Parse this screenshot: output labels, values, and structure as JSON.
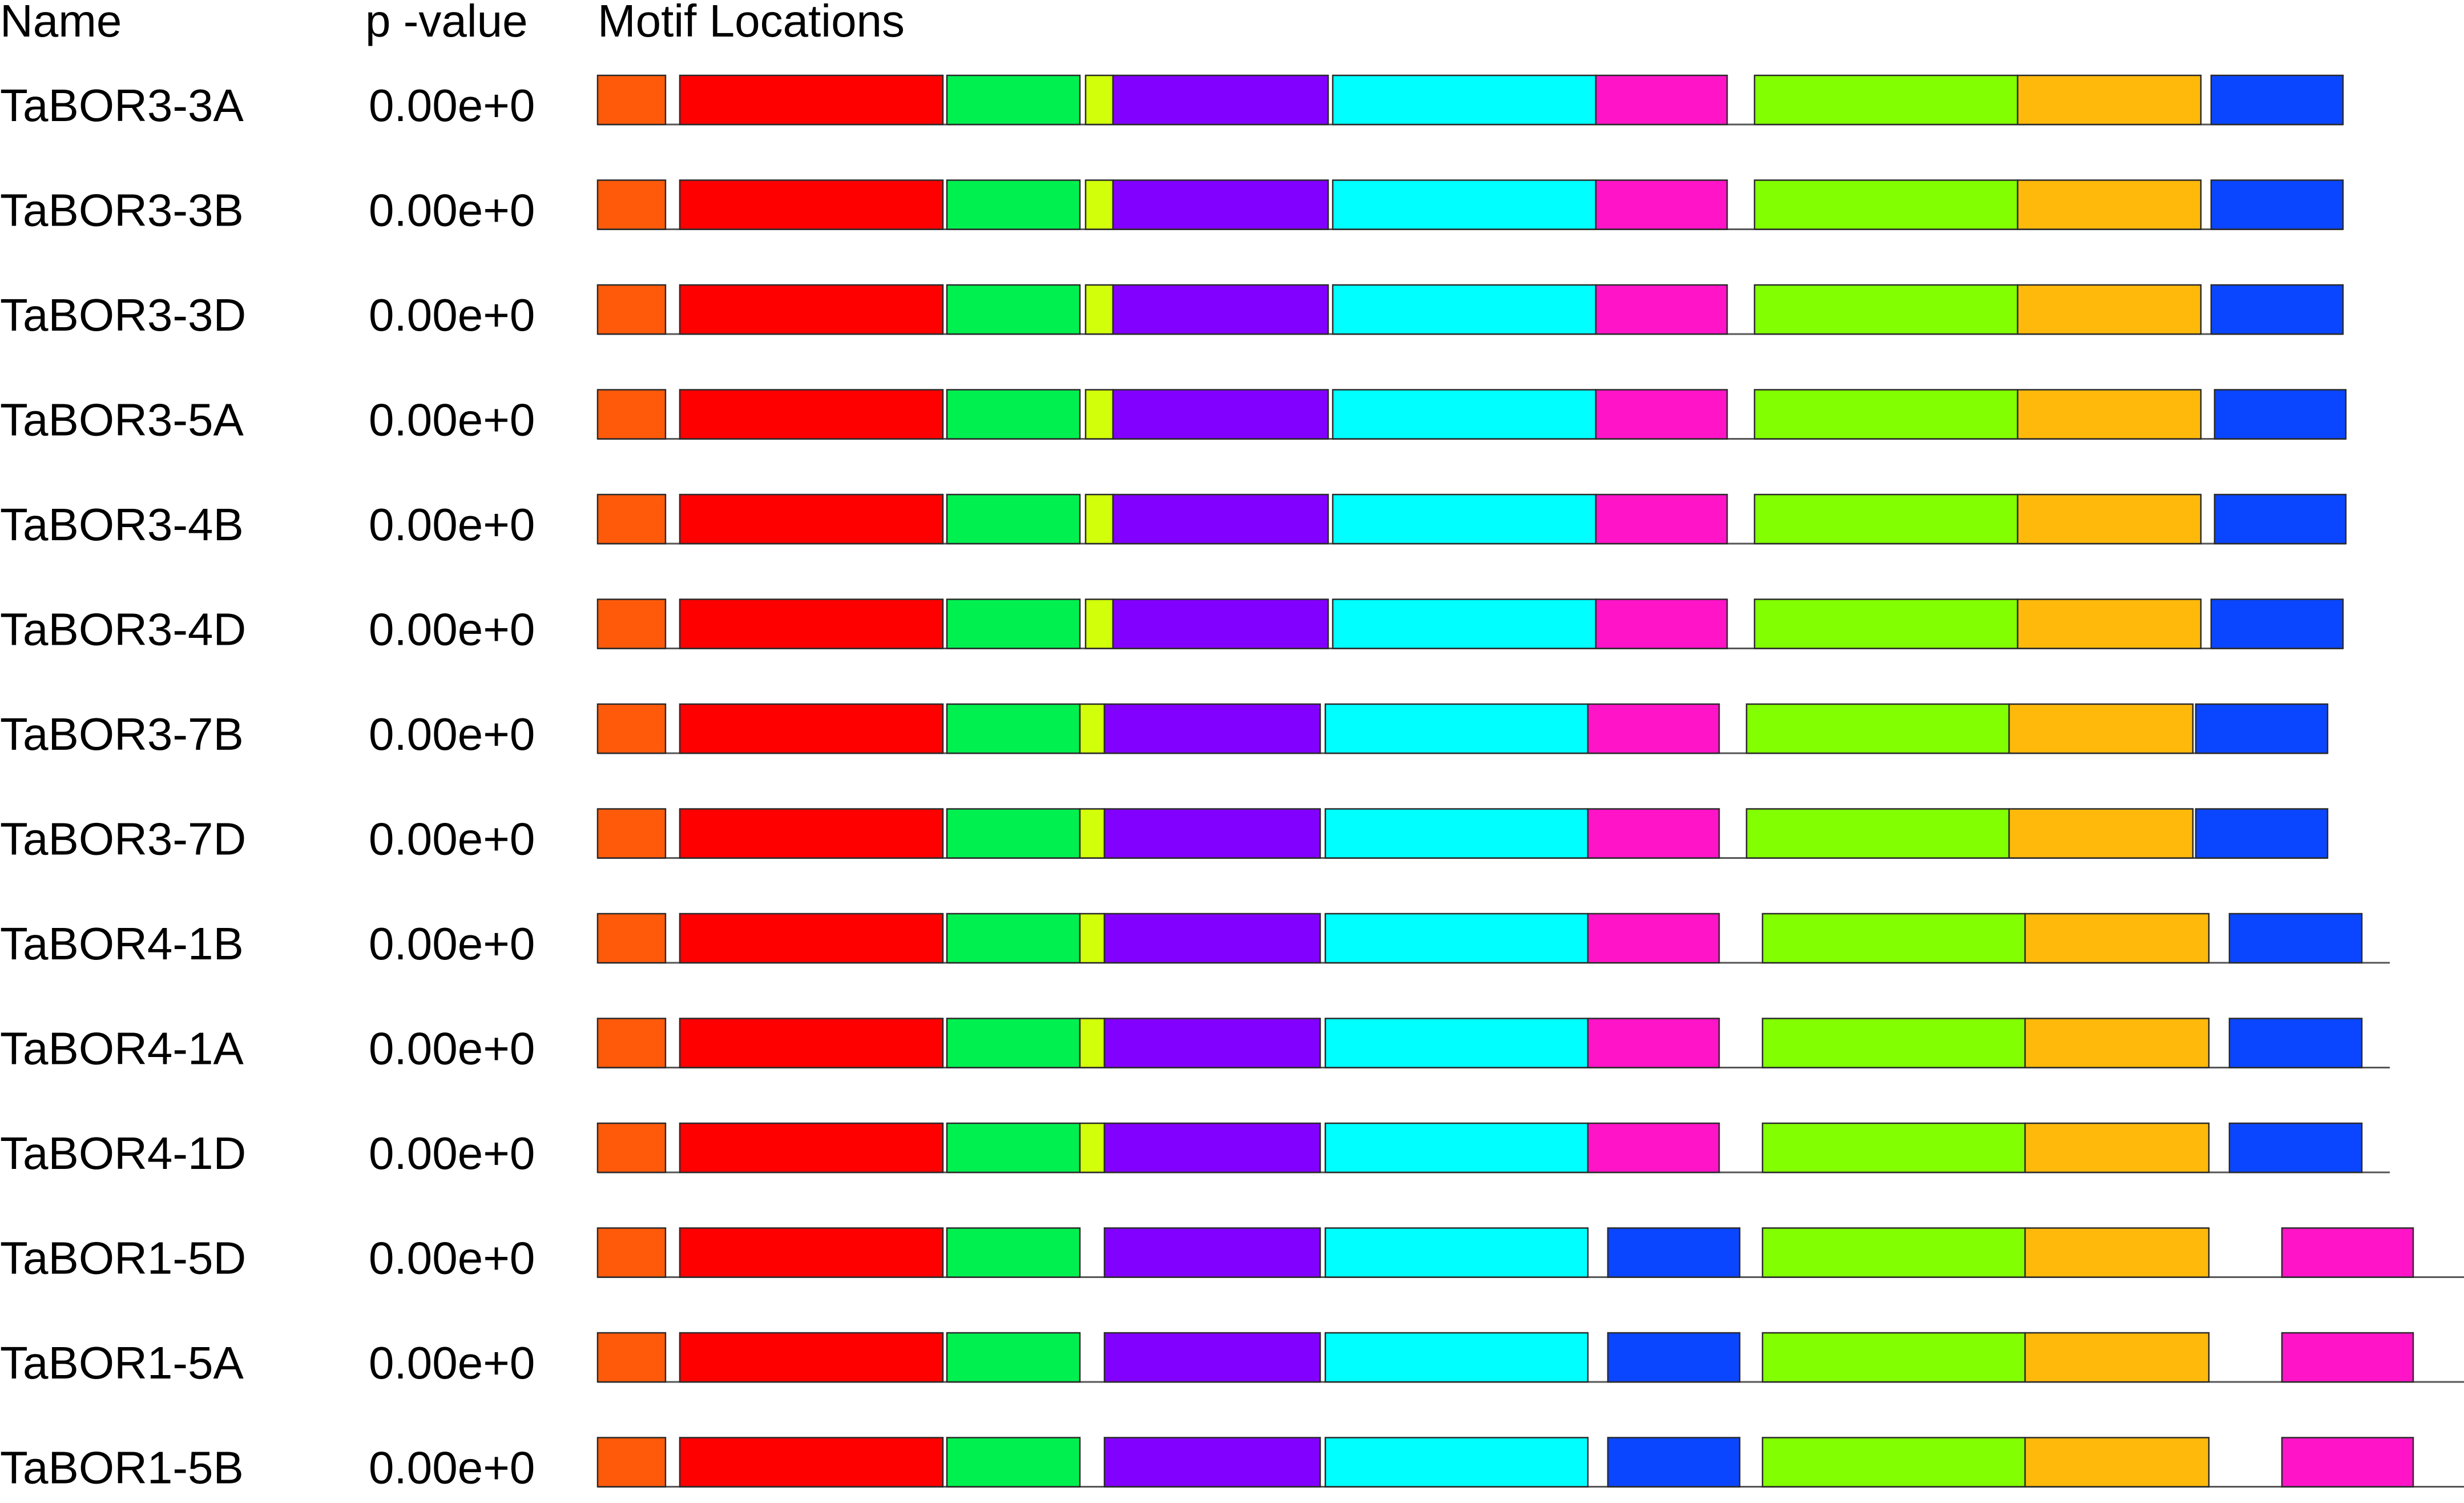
{
  "headers": {
    "name": "Name",
    "pvalue": "p -value",
    "motifs": "Motif Locations"
  },
  "motif_colors": {
    "orange": "#FF5A0A",
    "red": "#FF0000",
    "green": "#00F050",
    "yellow": "#D2FF0A",
    "purple": "#8200FF",
    "cyan": "#00FFFF",
    "magenta": "#FF14C8",
    "lime": "#82FF00",
    "amber": "#FFB90A",
    "blue": "#0A46FF"
  },
  "rows": [
    {
      "name": "TaBOR3-3A",
      "pvalue": "0.00e+0"
    },
    {
      "name": "TaBOR3-3B",
      "pvalue": "0.00e+0"
    },
    {
      "name": "TaBOR3-3D",
      "pvalue": "0.00e+0"
    },
    {
      "name": "TaBOR3-5A",
      "pvalue": "0.00e+0"
    },
    {
      "name": "TaBOR3-4B",
      "pvalue": "0.00e+0"
    },
    {
      "name": "TaBOR3-4D",
      "pvalue": "0.00e+0"
    },
    {
      "name": "TaBOR3-7B",
      "pvalue": "0.00e+0"
    },
    {
      "name": "TaBOR3-7D",
      "pvalue": "0.00e+0"
    },
    {
      "name": "TaBOR4-1B",
      "pvalue": "0.00e+0"
    },
    {
      "name": "TaBOR4-1A",
      "pvalue": "0.00e+0"
    },
    {
      "name": "TaBOR4-1D",
      "pvalue": "0.00e+0"
    },
    {
      "name": "TaBOR1-5D",
      "pvalue": "0.00e+0"
    },
    {
      "name": "TaBOR1-5A",
      "pvalue": "0.00e+0"
    },
    {
      "name": "TaBOR1-5B",
      "pvalue": "0.00e+0"
    }
  ]
}
